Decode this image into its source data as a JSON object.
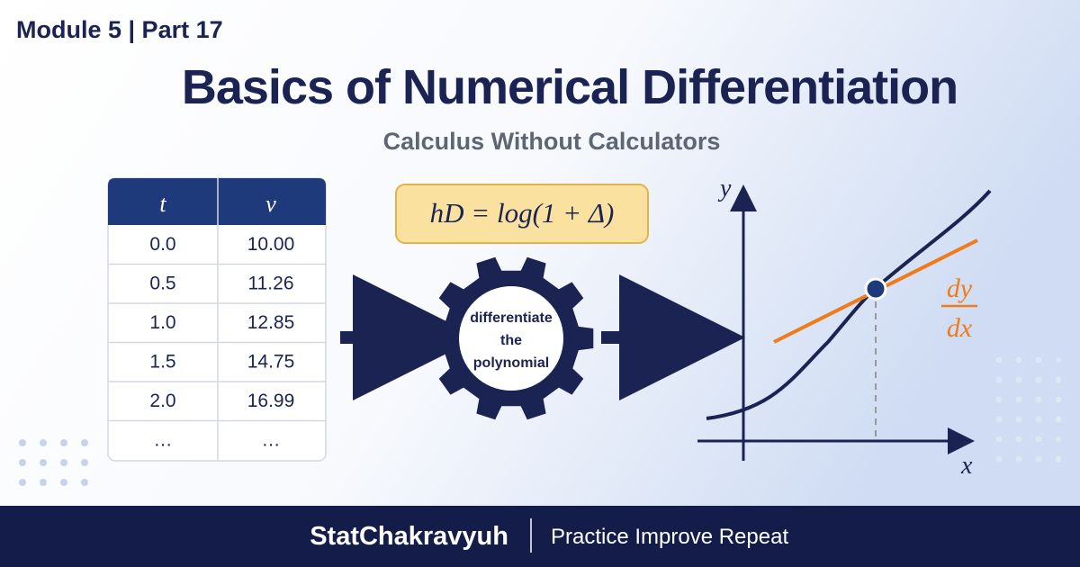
{
  "header": {
    "kicker": "Module 5 | Part 17",
    "title": "Basics of Numerical Differentiation",
    "subtitle": "Calculus Without Calculators"
  },
  "table": {
    "headers": [
      "t",
      "v"
    ],
    "rows": [
      [
        "0.0",
        "10.00"
      ],
      [
        "0.5",
        "11.26"
      ],
      [
        "1.0",
        "12.85"
      ],
      [
        "1.5",
        "14.75"
      ],
      [
        "2.0",
        "16.99"
      ],
      [
        "…",
        "…"
      ]
    ]
  },
  "formula": "hD = log(1 + Δ)",
  "gear": {
    "lines": [
      "differentiate",
      "the",
      "polynomial"
    ]
  },
  "graph": {
    "y_label": "y",
    "x_label": "x",
    "slope_numerator": "dy",
    "slope_denominator": "dx"
  },
  "footer": {
    "brand": "StatChakravyuh",
    "tagline": "Practice Improve Repeat"
  }
}
